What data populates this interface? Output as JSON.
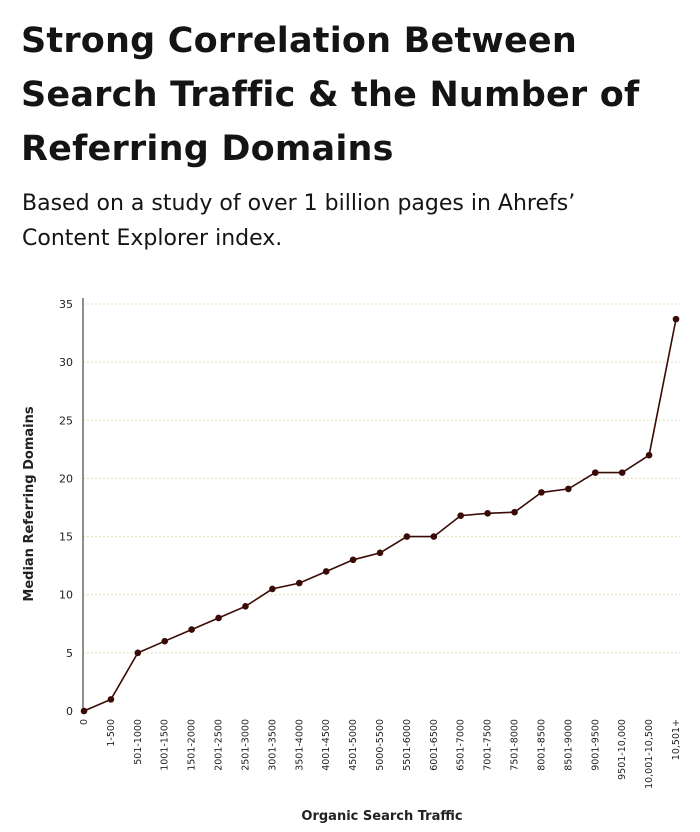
{
  "title": "Strong Correlation Between Search Traffic & the Number of Referring Domains",
  "subtitle": "Based on a study of over 1 billion pages in Ahrefs’ Content Explorer index.",
  "colors": {
    "line": "#3a0a06",
    "grid": "#e8d87a",
    "axis": "#222222"
  },
  "chart_data": {
    "type": "line",
    "xlabel": "Organic Search Traffic",
    "ylabel": "Median Referring Domains",
    "ylim": [
      0,
      35
    ],
    "yticks": [
      0,
      5,
      10,
      15,
      20,
      25,
      30,
      35
    ],
    "grid": "horizontal dotted",
    "categories": [
      "0",
      "1-500",
      "501-1000",
      "1001-1500",
      "1501-2000",
      "2001-2500",
      "2501-3000",
      "3001-3500",
      "3501-4000",
      "4001-4500",
      "4501-5000",
      "5000-5500",
      "5501-6000",
      "6001-6500",
      "6501-7000",
      "7001-7500",
      "7501-8000",
      "8001-8500",
      "8501-9000",
      "9001-9500",
      "9501-10,000",
      "10,001-10,500",
      "10,501+"
    ],
    "values": [
      0,
      1,
      5,
      6,
      7,
      8,
      9,
      10.5,
      11,
      12,
      13,
      13.6,
      15,
      15,
      16.8,
      17,
      17.1,
      18.8,
      19.1,
      20.5,
      20.5,
      22,
      33.7
    ]
  }
}
